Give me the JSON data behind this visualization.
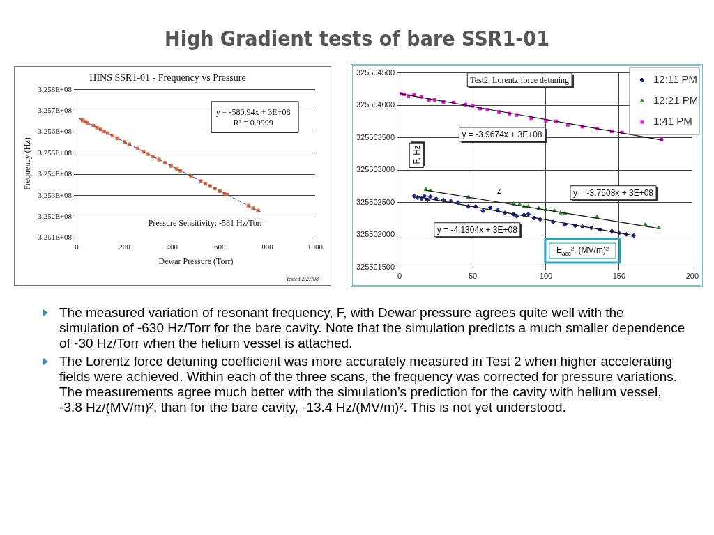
{
  "chart_data": [
    {
      "type": "scatter",
      "title": "HINS SSR1-01 - Frequency vs Pressure",
      "xlabel": "Dewar Pressure (Torr)",
      "ylabel": "Frequency (Hz)",
      "xlim": [
        0,
        1000
      ],
      "xticks": [
        0,
        200,
        400,
        600,
        800,
        1000
      ],
      "ylim": [
        325100000,
        325800000
      ],
      "yticks": [
        {
          "value": 325100000,
          "label": "3.251E+08"
        },
        {
          "value": 325200000,
          "label": "3.252E+08"
        },
        {
          "value": 325300000,
          "label": "3.253E+08"
        },
        {
          "value": 325400000,
          "label": "3.254E+08"
        },
        {
          "value": 325500000,
          "label": "3.255E+08"
        },
        {
          "value": 325600000,
          "label": "3.256E+08"
        },
        {
          "value": 325700000,
          "label": "3.257E+08"
        },
        {
          "value": 325800000,
          "label": "3.258E+08"
        }
      ],
      "grid": "y",
      "legend": false,
      "marker": "square",
      "series": [
        {
          "color": "#e8743b",
          "x": [
            25,
            35,
            45,
            70,
            85,
            100,
            115,
            130,
            150,
            170,
            200,
            220,
            255,
            280,
            300,
            320,
            345,
            370,
            395,
            420,
            435,
            480,
            520,
            540,
            560,
            580,
            600,
            620,
            630,
            720,
            740,
            760
          ],
          "values": [
            325655000,
            325650000,
            325644000,
            325630000,
            325620000,
            325612000,
            325603000,
            325595000,
            325583000,
            325571000,
            325554000,
            325542000,
            325522000,
            325507000,
            325496000,
            325484000,
            325470000,
            325455000,
            325440000,
            325426000,
            325417000,
            325391000,
            325368000,
            325356000,
            325345000,
            325333000,
            325321000,
            325310000,
            325304000,
            325252000,
            325240000,
            325229000
          ]
        },
        {
          "type": "line",
          "color": "#3a4fc4",
          "line_style": "dashed",
          "marker": "none",
          "x": [
            10,
            770
          ],
          "values": [
            325664000,
            325223000
          ]
        }
      ],
      "annotations": [
        "y = -580.94x + 3E+08",
        "R² = 0.9999",
        "Pressure Sensitivity: -581 Hz/Torr",
        "Tested 2/27/08"
      ]
    },
    {
      "type": "scatter",
      "xlabel": "E$_{acc}$², (MV/m)²",
      "ylabel": "F, Hz",
      "xlim": [
        0,
        200
      ],
      "xticks": [
        0,
        50,
        100,
        150,
        200
      ],
      "ylim": [
        325501500,
        325504500
      ],
      "yticks": [
        325501500,
        325502000,
        325502500,
        325503000,
        325503500,
        325504000,
        325504500
      ],
      "grid": true,
      "legend": "top right",
      "series": [
        {
          "name": "12:11 PM",
          "color": "#1f2a80",
          "marker": "diamond",
          "x": [
            10,
            12,
            15,
            17,
            19,
            21,
            25,
            30,
            35,
            40,
            47,
            52,
            57,
            62,
            67,
            72,
            78,
            80,
            85,
            88,
            92,
            96,
            105,
            113,
            120,
            125,
            131,
            137,
            145,
            150,
            155,
            160
          ],
          "values": [
            325502600,
            325502580,
            325502560,
            325502600,
            325502540,
            325502590,
            325502560,
            325502540,
            325502520,
            325502500,
            325502440,
            325502440,
            325502370,
            325502420,
            325502380,
            325502340,
            325502320,
            325502290,
            325502310,
            325502320,
            325502260,
            325502240,
            325502200,
            325502160,
            325502140,
            325502130,
            325502110,
            325502080,
            325502060,
            325502030,
            325502010,
            325501990
          ]
        },
        {
          "name": "12:21 PM",
          "color": "#2e8b2e",
          "marker": "triangle",
          "x": [
            18,
            21,
            47,
            78,
            82,
            85,
            88,
            95,
            100,
            106,
            110,
            113,
            135,
            168,
            177
          ],
          "values": [
            325502700,
            325502680,
            325502580,
            325502480,
            325502470,
            325502440,
            325502440,
            325502410,
            325502390,
            325502370,
            325502340,
            325502330,
            325502280,
            325502160,
            325502110
          ]
        },
        {
          "name": "1:41 PM",
          "color": "#e020d0",
          "marker": "square",
          "x": [
            0,
            3,
            6,
            10,
            15,
            20,
            24,
            30,
            37,
            45,
            50,
            55,
            60,
            68,
            75,
            80,
            90,
            100,
            107,
            115,
            125,
            135,
            145,
            152,
            179
          ],
          "values": [
            325504180,
            325504170,
            325504140,
            325504160,
            325504130,
            325504080,
            325504080,
            325504050,
            325504040,
            325504010,
            325503990,
            325503950,
            325503930,
            325503900,
            325503870,
            325503850,
            325503800,
            325503760,
            325503750,
            325503700,
            325503670,
            325503640,
            325503600,
            325503580,
            325503470
          ]
        },
        {
          "type": "line",
          "color": "#111111",
          "marker": "none",
          "x": [
            0,
            180
          ],
          "values": [
            325504180,
            325503460
          ]
        },
        {
          "type": "line",
          "color": "#111111",
          "marker": "none",
          "x": [
            18,
            177
          ],
          "values": [
            325502690,
            325502100
          ]
        },
        {
          "type": "line",
          "color": "#111111",
          "marker": "none",
          "x": [
            10,
            160
          ],
          "values": [
            325502600,
            325501990
          ]
        }
      ],
      "annotations": [
        "Test2. Lorentz force detuning",
        "y = -3.9674x + 3E+08",
        "z",
        "y = -3.7508x + 3E+08",
        "y = -4.1304x + 3E+08"
      ]
    },
    {
      "type": "other",
      "title": "High Gradient tests of bare SSR1-01",
      "annotations": [
        "The measured variation of resonant frequency, F, with Dewar pressure agrees quite well with the simulation of -630 Hz/Torr for the bare cavity.  Note that the simulation predicts a much smaller dependence of -30 Hz/Torr when the helium vessel is attached.",
        "The Lorentz force detuning coefficient was more accurately measured in Test 2 when higher accelerating fields were achieved.  Within each of the three scans, the frequency was corrected for pressure variations.  The measurements agree much better with the simulation’s prediction for the cavity with helium vessel, -3.8 Hz/(MV/m)², than for the bare cavity, -13.4 Hz/(MV/m)².  This is not yet understood."
      ]
    }
  ]
}
